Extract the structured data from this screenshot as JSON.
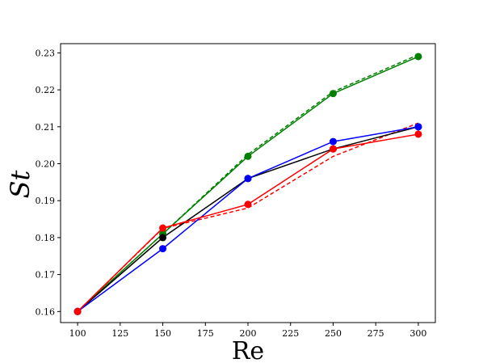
{
  "chart_data": {
    "type": "line",
    "xlabel": "Re",
    "ylabel": "St",
    "xlim": [
      90,
      310
    ],
    "ylim": [
      0.157,
      0.2325
    ],
    "xticks": [
      100,
      125,
      150,
      175,
      200,
      225,
      250,
      275,
      300
    ],
    "yticks": [
      0.16,
      0.17,
      0.18,
      0.19,
      0.2,
      0.21,
      0.22,
      0.23
    ],
    "ytick_labels": [
      "0.16",
      "0.17",
      "0.18",
      "0.19",
      "0.20",
      "0.21",
      "0.22",
      "0.23"
    ],
    "grid": false,
    "series": [
      {
        "color": "#008000",
        "style": "solid",
        "markers": true,
        "x": [
          100,
          150,
          200,
          250,
          300
        ],
        "y": [
          0.16,
          0.181,
          0.202,
          0.219,
          0.229
        ]
      },
      {
        "color": "#008000",
        "style": "dashed",
        "markers": false,
        "x": [
          100,
          150,
          200,
          250,
          300
        ],
        "y": [
          0.16,
          0.181,
          0.2025,
          0.2195,
          0.2295
        ]
      },
      {
        "color": "#000000",
        "style": "solid",
        "markers": true,
        "x": [
          100,
          150,
          200,
          250,
          300
        ],
        "y": [
          0.16,
          0.18,
          0.196,
          0.204,
          0.21
        ]
      },
      {
        "color": "#0000ff",
        "style": "solid",
        "markers": true,
        "x": [
          100,
          150,
          200,
          250,
          300
        ],
        "y": [
          0.16,
          0.177,
          0.196,
          0.206,
          0.21
        ]
      },
      {
        "color": "#ff0000",
        "style": "solid",
        "markers": true,
        "x": [
          100,
          150,
          200,
          250,
          300
        ],
        "y": [
          0.16,
          0.1826,
          0.189,
          0.204,
          0.208
        ]
      },
      {
        "color": "#ff0000",
        "style": "dashed",
        "markers": false,
        "x": [
          100,
          150,
          200,
          250,
          300
        ],
        "y": [
          0.16,
          0.1825,
          0.188,
          0.202,
          0.211
        ]
      }
    ]
  }
}
